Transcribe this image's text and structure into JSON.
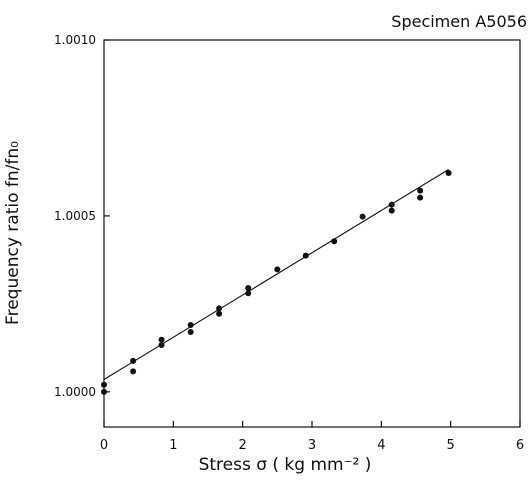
{
  "chart_data": {
    "type": "scatter",
    "title": "Specimen A5056",
    "xlabel": "Stress σ ( kg mm⁻² )",
    "ylabel": "Frequency ratio fn/fn₀",
    "xlim": [
      0,
      6
    ],
    "ylim": [
      0.9999,
      1.001
    ],
    "x_ticks": [
      {
        "value": 0,
        "label": "0"
      },
      {
        "value": 1,
        "label": "1"
      },
      {
        "value": 2,
        "label": "2"
      },
      {
        "value": 3,
        "label": "3"
      },
      {
        "value": 4,
        "label": "4"
      },
      {
        "value": 5,
        "label": "5"
      },
      {
        "value": 6,
        "label": "6"
      }
    ],
    "y_ticks": [
      {
        "value": 1.0,
        "label": "1.0000"
      },
      {
        "value": 1.0005,
        "label": "1.0005"
      },
      {
        "value": 1.001,
        "label": "1.0010"
      }
    ],
    "grid": false,
    "points": [
      {
        "x": 0.0,
        "y": 1.00002
      },
      {
        "x": 0.0,
        "y": 1.0
      },
      {
        "x": 0.42,
        "y": 1.000088
      },
      {
        "x": 0.42,
        "y": 1.000058
      },
      {
        "x": 0.83,
        "y": 1.000148
      },
      {
        "x": 0.83,
        "y": 1.000133
      },
      {
        "x": 1.25,
        "y": 1.00019
      },
      {
        "x": 1.25,
        "y": 1.00017
      },
      {
        "x": 1.66,
        "y": 1.000237
      },
      {
        "x": 1.66,
        "y": 1.000222
      },
      {
        "x": 2.08,
        "y": 1.000295
      },
      {
        "x": 2.08,
        "y": 1.00028
      },
      {
        "x": 2.5,
        "y": 1.000348
      },
      {
        "x": 2.91,
        "y": 1.000387
      },
      {
        "x": 3.32,
        "y": 1.000428
      },
      {
        "x": 3.73,
        "y": 1.000498
      },
      {
        "x": 4.15,
        "y": 1.000532
      },
      {
        "x": 4.15,
        "y": 1.000515
      },
      {
        "x": 4.56,
        "y": 1.000572
      },
      {
        "x": 4.56,
        "y": 1.000552
      },
      {
        "x": 4.97,
        "y": 1.000622
      }
    ],
    "fit_line": {
      "x": [
        0,
        4.97
      ],
      "y": [
        1.000035,
        1.000632
      ]
    }
  },
  "colors": {
    "ink": "#111111",
    "background": "#ffffff"
  }
}
